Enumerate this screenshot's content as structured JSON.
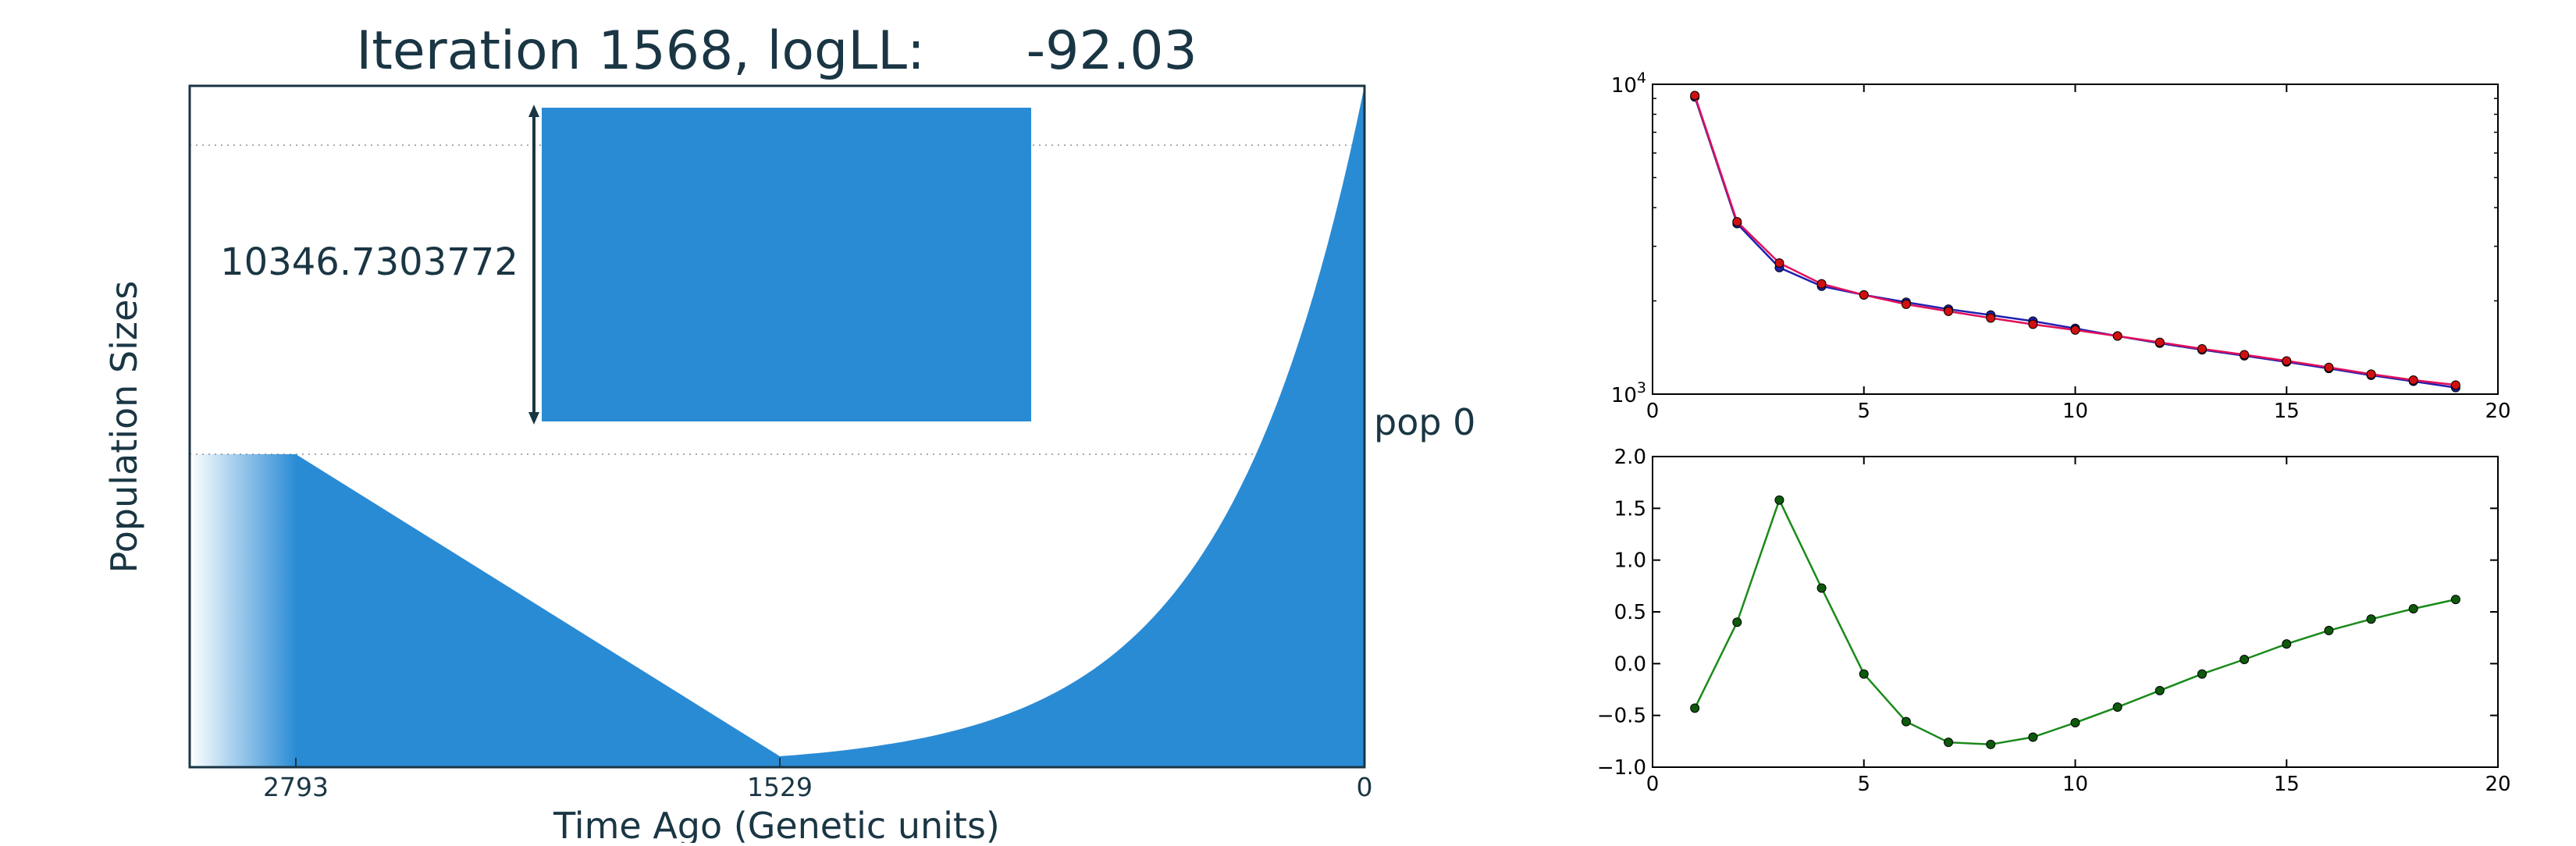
{
  "title": "Iteration 1568, logLL:      -92.03",
  "colors": {
    "text": "#1a3644",
    "fill": "#2a8bd5",
    "frame": "#1a3644",
    "pink_series": "#e0105a",
    "red_marker": "#d01010",
    "blue_series": "#2020b0",
    "green_series": "#1a8a1a",
    "green_marker": "#0d5a0d"
  },
  "main_plot": {
    "xlabel": "Time Ago (Genetic units)",
    "ylabel": "Population Sizes",
    "x_ticks": [
      "2793",
      "1529",
      "0"
    ],
    "size_label": "10346.7303772",
    "pop_label": "pop 0"
  },
  "chart_data": [
    {
      "type": "area",
      "title": "Iteration 1568, logLL:      -92.03",
      "xlabel": "Time Ago (Genetic units)",
      "ylabel": "Population Sizes",
      "x_ticks": [
        2793,
        1529,
        0
      ],
      "annotations": [
        "10346.7303772",
        "pop 0"
      ]
    },
    {
      "type": "line",
      "yscale": "log",
      "xlim": [
        0,
        20
      ],
      "ylim": [
        1000,
        10000
      ],
      "x_ticks": [
        0,
        5,
        10,
        15,
        20
      ],
      "y_ticks": [
        "10^3",
        "10^4"
      ],
      "x": [
        1,
        2,
        3,
        4,
        5,
        6,
        7,
        8,
        9,
        10,
        11,
        12,
        13,
        14,
        15,
        16,
        17,
        18,
        19
      ],
      "series": [
        {
          "color": "blue",
          "values": [
            9100,
            3550,
            2560,
            2230,
            2090,
            1980,
            1880,
            1800,
            1720,
            1630,
            1540,
            1460,
            1390,
            1330,
            1270,
            1210,
            1150,
            1100,
            1050
          ]
        },
        {
          "color": "red",
          "values": [
            9200,
            3600,
            2650,
            2270,
            2090,
            1950,
            1850,
            1760,
            1680,
            1610,
            1540,
            1470,
            1400,
            1340,
            1280,
            1220,
            1160,
            1110,
            1070
          ]
        }
      ]
    },
    {
      "type": "line",
      "xlim": [
        0,
        20
      ],
      "ylim": [
        -1.0,
        2.0
      ],
      "x_ticks": [
        0,
        5,
        10,
        15,
        20
      ],
      "y_ticks": [
        "−1.0",
        "−0.5",
        "0.0",
        "0.5",
        "1.0",
        "1.5",
        "2.0"
      ],
      "x": [
        1,
        2,
        3,
        4,
        5,
        6,
        7,
        8,
        9,
        10,
        11,
        12,
        13,
        14,
        15,
        16,
        17,
        18,
        19
      ],
      "series": [
        {
          "color": "green",
          "values": [
            -0.43,
            0.4,
            1.58,
            0.73,
            -0.1,
            -0.56,
            -0.76,
            -0.78,
            -0.71,
            -0.57,
            -0.42,
            -0.26,
            -0.1,
            0.04,
            0.19,
            0.32,
            0.43,
            0.53,
            0.62
          ]
        }
      ]
    }
  ]
}
